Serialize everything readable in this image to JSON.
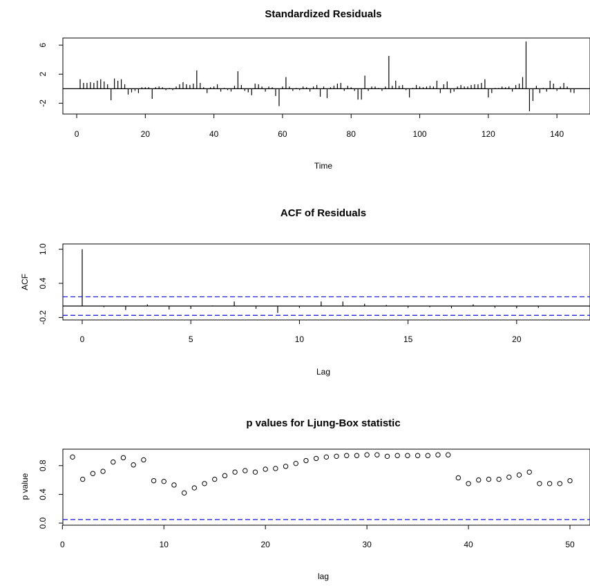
{
  "chart_data": [
    {
      "type": "bar",
      "title": "Standardized Residuals",
      "xlabel": "Time",
      "ylabel": "",
      "xlim": [
        1,
        144
      ],
      "ylim": [
        -3.2,
        6.5
      ],
      "xticks": [
        "0",
        "20",
        "40",
        "60",
        "80",
        "100",
        "120",
        "140"
      ],
      "yticks": [
        "-2",
        "2",
        "6"
      ],
      "x_start": 1,
      "values": [
        1.3,
        0.8,
        0.8,
        0.9,
        0.8,
        1.1,
        1.3,
        1.0,
        0.6,
        -1.6,
        1.4,
        1.1,
        1.3,
        0.6,
        -0.8,
        -0.5,
        -0.3,
        -0.6,
        0.2,
        0.2,
        0.2,
        -1.4,
        0.2,
        0.3,
        0.2,
        -0.2,
        0.1,
        -0.2,
        0.3,
        0.6,
        0.9,
        0.6,
        0.5,
        0.7,
        2.5,
        0.8,
        0.2,
        -0.6,
        0.2,
        0.3,
        0.6,
        -0.4,
        0.1,
        -0.2,
        -0.4,
        0.4,
        2.4,
        0.5,
        -0.3,
        -0.5,
        -0.9,
        0.7,
        0.6,
        0.3,
        -0.4,
        0.3,
        0.2,
        -1.0,
        -2.4,
        0.3,
        1.6,
        0.3,
        -0.3,
        0.1,
        -0.2,
        0.3,
        0.2,
        -0.4,
        0.3,
        0.5,
        -1.1,
        0.3,
        -1.3,
        0.2,
        0.4,
        0.7,
        0.8,
        -0.3,
        0.4,
        0.2,
        -0.3,
        -1.5,
        -1.5,
        1.8,
        -0.3,
        0.3,
        0.3,
        0.1,
        -0.3,
        0.3,
        4.5,
        0.4,
        1.1,
        0.4,
        0.5,
        -0.2,
        -1.2,
        0.1,
        0.5,
        0.3,
        0.2,
        0.3,
        0.4,
        0.3,
        1.1,
        -0.6,
        0.6,
        1.0,
        -0.6,
        -0.4,
        0.3,
        0.5,
        0.3,
        0.3,
        0.5,
        0.6,
        0.6,
        0.8,
        1.3,
        -1.2,
        -0.6,
        0.1,
        0.1,
        0.3,
        0.2,
        0.3,
        -0.4,
        0.5,
        0.7,
        1.6,
        6.5,
        -3.1,
        -1.7,
        0.4,
        -0.6,
        0.1,
        -0.4,
        1.1,
        0.7,
        -0.3,
        0.3,
        0.8,
        0.3,
        -0.5,
        -0.6
      ]
    },
    {
      "type": "bar",
      "title": "ACF of Residuals",
      "xlabel": "Lag",
      "ylabel": "ACF",
      "xlim": [
        0,
        21.5
      ],
      "ylim": [
        -0.22,
        1.02
      ],
      "xticks": [
        "0",
        "5",
        "10",
        "15",
        "20"
      ],
      "yticks": [
        "-0.2",
        "0.4",
        "1.0"
      ],
      "values": [
        1.0,
        -0.02,
        -0.07,
        0.03,
        -0.06,
        -0.05,
        0.01,
        0.08,
        -0.05,
        -0.12,
        -0.03,
        0.08,
        0.08,
        0.04,
        0.02,
        -0.03,
        -0.02,
        -0.04,
        0.03,
        -0.03,
        -0.04,
        -0.03
      ],
      "confidence_bounds": [
        0.163,
        -0.163
      ]
    },
    {
      "type": "scatter",
      "title": "p values for Ljung-Box statistic",
      "xlabel": "lag",
      "ylabel": "p value",
      "xlim": [
        1,
        50
      ],
      "ylim": [
        0,
        1.0
      ],
      "xticks": [
        "0",
        "10",
        "20",
        "30",
        "40",
        "50"
      ],
      "yticks": [
        "0.0",
        "0.4",
        "0.8"
      ],
      "x_start": 1,
      "values": [
        0.92,
        0.61,
        0.69,
        0.72,
        0.85,
        0.91,
        0.81,
        0.88,
        0.59,
        0.58,
        0.53,
        0.42,
        0.49,
        0.55,
        0.61,
        0.66,
        0.71,
        0.73,
        0.71,
        0.75,
        0.76,
        0.79,
        0.83,
        0.87,
        0.9,
        0.92,
        0.93,
        0.94,
        0.94,
        0.95,
        0.95,
        0.93,
        0.94,
        0.94,
        0.94,
        0.94,
        0.95,
        0.95,
        0.63,
        0.55,
        0.6,
        0.61,
        0.61,
        0.64,
        0.67,
        0.71,
        0.55,
        0.55,
        0.55,
        0.59
      ],
      "reference_line": 0.05
    }
  ]
}
